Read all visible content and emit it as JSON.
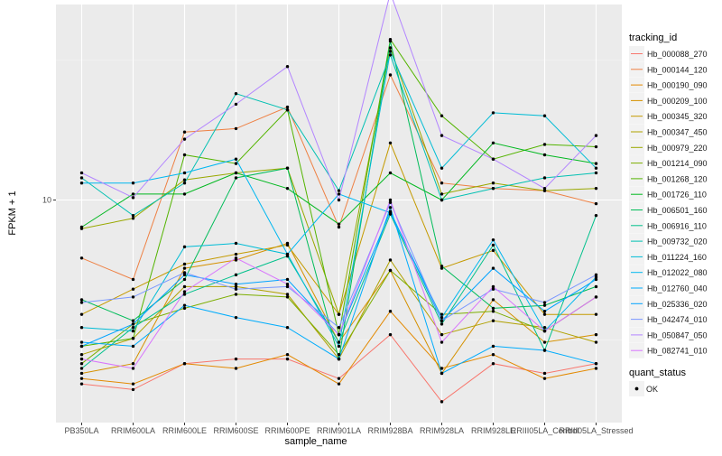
{
  "chart_data": {
    "type": "line",
    "xlabel": "sample_name",
    "ylabel": "FPKM + 1",
    "yscale": "log10",
    "ytick_values": [
      10
    ],
    "ytick_labels": [
      "10"
    ],
    "ylim": [
      1.6,
      50
    ],
    "categories": [
      "PB350LA",
      "RRIM600LA",
      "RRIM600LE",
      "RRIM600SE",
      "RRIM600PE",
      "RRIM901LA",
      "RRIM928BA",
      "RRIM928LA",
      "RRIM928LE",
      "RRIII05LA_Control",
      "RRIII05LA_Stressed"
    ],
    "legend_title": "tracking_id",
    "legend2_title": "quant_status",
    "legend2_label": "OK",
    "series": [
      {
        "name": "Hb_000088_270",
        "color": "#F8766D",
        "values": [
          2.2,
          2.1,
          2.6,
          2.7,
          2.7,
          2.3,
          3.3,
          1.9,
          2.6,
          2.4,
          2.6
        ]
      },
      {
        "name": "Hb_000144_120",
        "color": "#EE8043",
        "values": [
          6.2,
          5.2,
          17.5,
          18.0,
          21.5,
          8.0,
          28.0,
          11.5,
          11.0,
          10.8,
          9.7
        ]
      },
      {
        "name": "Hb_000190_090",
        "color": "#E38900",
        "values": [
          2.3,
          2.2,
          2.6,
          2.5,
          2.8,
          2.2,
          4.0,
          2.5,
          2.8,
          2.3,
          2.5
        ]
      },
      {
        "name": "Hb_000209_100",
        "color": "#D59100",
        "values": [
          2.4,
          2.6,
          5.7,
          6.1,
          7.0,
          3.1,
          5.6,
          2.4,
          4.4,
          3.1,
          3.3
        ]
      },
      {
        "name": "Hb_000345_320",
        "color": "#C49A00",
        "values": [
          3.9,
          4.8,
          5.9,
          6.4,
          6.9,
          3.9,
          16.0,
          5.7,
          6.6,
          3.9,
          3.9
        ]
      },
      {
        "name": "Hb_000347_450",
        "color": "#B0A100",
        "values": [
          2.8,
          3.2,
          4.9,
          4.9,
          4.6,
          2.7,
          6.1,
          3.3,
          3.7,
          3.5,
          3.1
        ]
      },
      {
        "name": "Hb_000979_220",
        "color": "#99A800",
        "values": [
          7.9,
          8.6,
          11.8,
          12.5,
          13.0,
          3.9,
          35.0,
          10.5,
          11.5,
          10.8,
          11.0
        ]
      },
      {
        "name": "Hb_001214_090",
        "color": "#7CAE00",
        "values": [
          2.6,
          3.6,
          4.1,
          4.6,
          4.5,
          2.8,
          5.6,
          3.9,
          4.0,
          3.4,
          4.5
        ]
      },
      {
        "name": "Hb_001268_120",
        "color": "#53B400",
        "values": [
          3.0,
          3.2,
          14.5,
          13.5,
          21.0,
          3.3,
          37.5,
          20.0,
          14.0,
          15.8,
          15.5
        ]
      },
      {
        "name": "Hb_001726_110",
        "color": "#00B81F",
        "values": [
          8.0,
          10.5,
          10.5,
          12.5,
          11.0,
          8.2,
          12.5,
          10.0,
          16.0,
          14.5,
          13.5
        ]
      },
      {
        "name": "Hb_006501_160",
        "color": "#00BC59",
        "values": [
          4.4,
          3.7,
          5.2,
          12.0,
          13.0,
          2.7,
          37.0,
          5.8,
          4.1,
          4.2,
          4.9
        ]
      },
      {
        "name": "Hb_006916_110",
        "color": "#00C08B",
        "values": [
          2.5,
          3.5,
          4.6,
          5.4,
          6.3,
          3.1,
          8.9,
          3.6,
          6.9,
          2.9,
          8.8
        ]
      },
      {
        "name": "Hb_009732_020",
        "color": "#00C0B2",
        "values": [
          12.0,
          8.8,
          11.5,
          24.0,
          21.0,
          10.8,
          33.0,
          10.0,
          11.0,
          12.0,
          12.5
        ]
      },
      {
        "name": "Hb_011224_160",
        "color": "#00BCD5",
        "values": [
          3.5,
          3.4,
          6.8,
          7.0,
          6.4,
          3.0,
          34.0,
          13.0,
          20.5,
          20.0,
          13.0
        ]
      },
      {
        "name": "Hb_012022_080",
        "color": "#00B7F0",
        "values": [
          11.5,
          11.5,
          12.5,
          14.0,
          6.4,
          10.5,
          9.0,
          3.8,
          7.2,
          3.4,
          5.3
        ]
      },
      {
        "name": "Hb_012760_040",
        "color": "#00ACFC",
        "values": [
          3.1,
          3.0,
          4.2,
          3.8,
          3.5,
          2.7,
          9.4,
          2.4,
          3.0,
          2.9,
          2.6
        ]
      },
      {
        "name": "Hb_025336_020",
        "color": "#00A2FF",
        "values": [
          3.0,
          3.6,
          5.4,
          5.0,
          5.2,
          3.3,
          9.1,
          3.7,
          5.7,
          4.0,
          5.2
        ]
      },
      {
        "name": "Hb_042474_010",
        "color": "#7997FF",
        "values": [
          4.3,
          4.5,
          5.5,
          4.8,
          4.9,
          3.5,
          9.8,
          3.7,
          4.8,
          4.3,
          5.4
        ]
      },
      {
        "name": "Hb_050847_050",
        "color": "#B385FF",
        "values": [
          12.5,
          10.2,
          16.5,
          22.0,
          30.0,
          10.0,
          55.0,
          17.0,
          14.0,
          11.0,
          17.0
        ]
      },
      {
        "name": "Hb_082741_010",
        "color": "#D874FD",
        "values": [
          2.7,
          2.5,
          4.7,
          6.2,
          5.0,
          3.3,
          10.0,
          3.1,
          4.9,
          3.4,
          4.5
        ]
      }
    ]
  }
}
